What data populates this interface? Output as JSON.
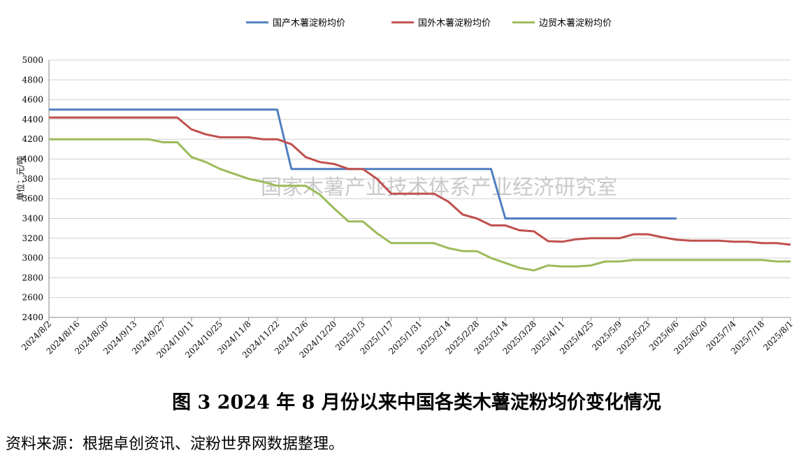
{
  "chart_data": {
    "type": "line",
    "title": "图 3   2024 年 8 月份以来中国各类木薯淀粉均价变化情况",
    "source": "资料来源：根据卓创资讯、淀粉世界网数据整理。",
    "watermark": "国家木薯产业技术体系产业经济研究室",
    "y_label": "单位：元/吨",
    "categories": [
      "2024/8/2",
      null,
      "2024/8/16",
      null,
      "2024/8/30",
      null,
      "2024/9/13",
      null,
      "2024/9/27",
      null,
      "2024/10/11",
      null,
      "2024/10/25",
      null,
      "2024/11/8",
      null,
      "2024/11/22",
      null,
      "2024/12/6",
      null,
      "2024/12/20",
      null,
      "2025/1/3",
      null,
      "2025/1/17",
      null,
      "2025/1/31",
      null,
      "2025/2/14",
      null,
      "2025/2/28",
      null,
      "2025/3/14",
      null,
      "2025/3/28",
      null,
      "2025/4/11",
      null,
      "2025/4/25",
      null,
      "2025/5/9",
      null,
      "2025/5/23",
      null,
      "2025/6/6",
      null,
      "2025/6/20",
      null,
      "2025/7/4",
      null,
      "2025/7/18",
      null,
      "2025/8/1"
    ],
    "series": [
      {
        "name": "国产木薯淀粉均价",
        "color": "#4f7fbf",
        "values": [
          4500,
          4500,
          4500,
          4500,
          4500,
          4500,
          4500,
          4500,
          4500,
          4500,
          4500,
          4500,
          4500,
          4500,
          4500,
          4500,
          4500,
          3900,
          3900,
          3900,
          3900,
          3900,
          3900,
          3900,
          3900,
          3900,
          3900,
          3900,
          3900,
          3900,
          3900,
          3900,
          3400,
          3400,
          3400,
          3400,
          3400,
          3400,
          3400,
          3400,
          3400,
          3400,
          3400,
          3400,
          3400,
          null,
          null,
          null,
          null,
          null,
          null,
          null,
          null
        ]
      },
      {
        "name": "国外木薯淀粉均价",
        "color": "#c0504d",
        "values": [
          4420,
          4420,
          4420,
          4420,
          4420,
          4420,
          4420,
          4420,
          4420,
          4420,
          4300,
          4250,
          4220,
          4220,
          4220,
          4200,
          4200,
          4150,
          4020,
          3970,
          3950,
          3900,
          3900,
          3800,
          3650,
          3650,
          3650,
          3650,
          3570,
          3440,
          3400,
          3330,
          3330,
          3280,
          3270,
          3170,
          3165,
          3190,
          3200,
          3200,
          3200,
          3240,
          3240,
          3210,
          3185,
          3175,
          3175,
          3175,
          3165,
          3165,
          3150,
          3150,
          3135
        ]
      },
      {
        "name": "边贸木薯淀粉均价",
        "color": "#9bbb59",
        "values": [
          4200,
          4200,
          4200,
          4200,
          4200,
          4200,
          4200,
          4200,
          4170,
          4170,
          4020,
          3970,
          3900,
          3850,
          3800,
          3770,
          3730,
          3730,
          3730,
          3640,
          3500,
          3370,
          3370,
          3250,
          3150,
          3150,
          3150,
          3150,
          3100,
          3070,
          3070,
          3000,
          2950,
          2900,
          2875,
          2925,
          2915,
          2915,
          2925,
          2965,
          2965,
          2980,
          2980,
          2980,
          2980,
          2980,
          2980,
          2980,
          2980,
          2980,
          2980,
          2965,
          2965
        ]
      }
    ],
    "ylim": [
      2400,
      5000
    ],
    "yticks": [
      2400,
      2600,
      2800,
      3000,
      3200,
      3400,
      3600,
      3800,
      4000,
      4200,
      4400,
      4600,
      4800,
      5000
    ],
    "grid": true,
    "legend": "top"
  }
}
